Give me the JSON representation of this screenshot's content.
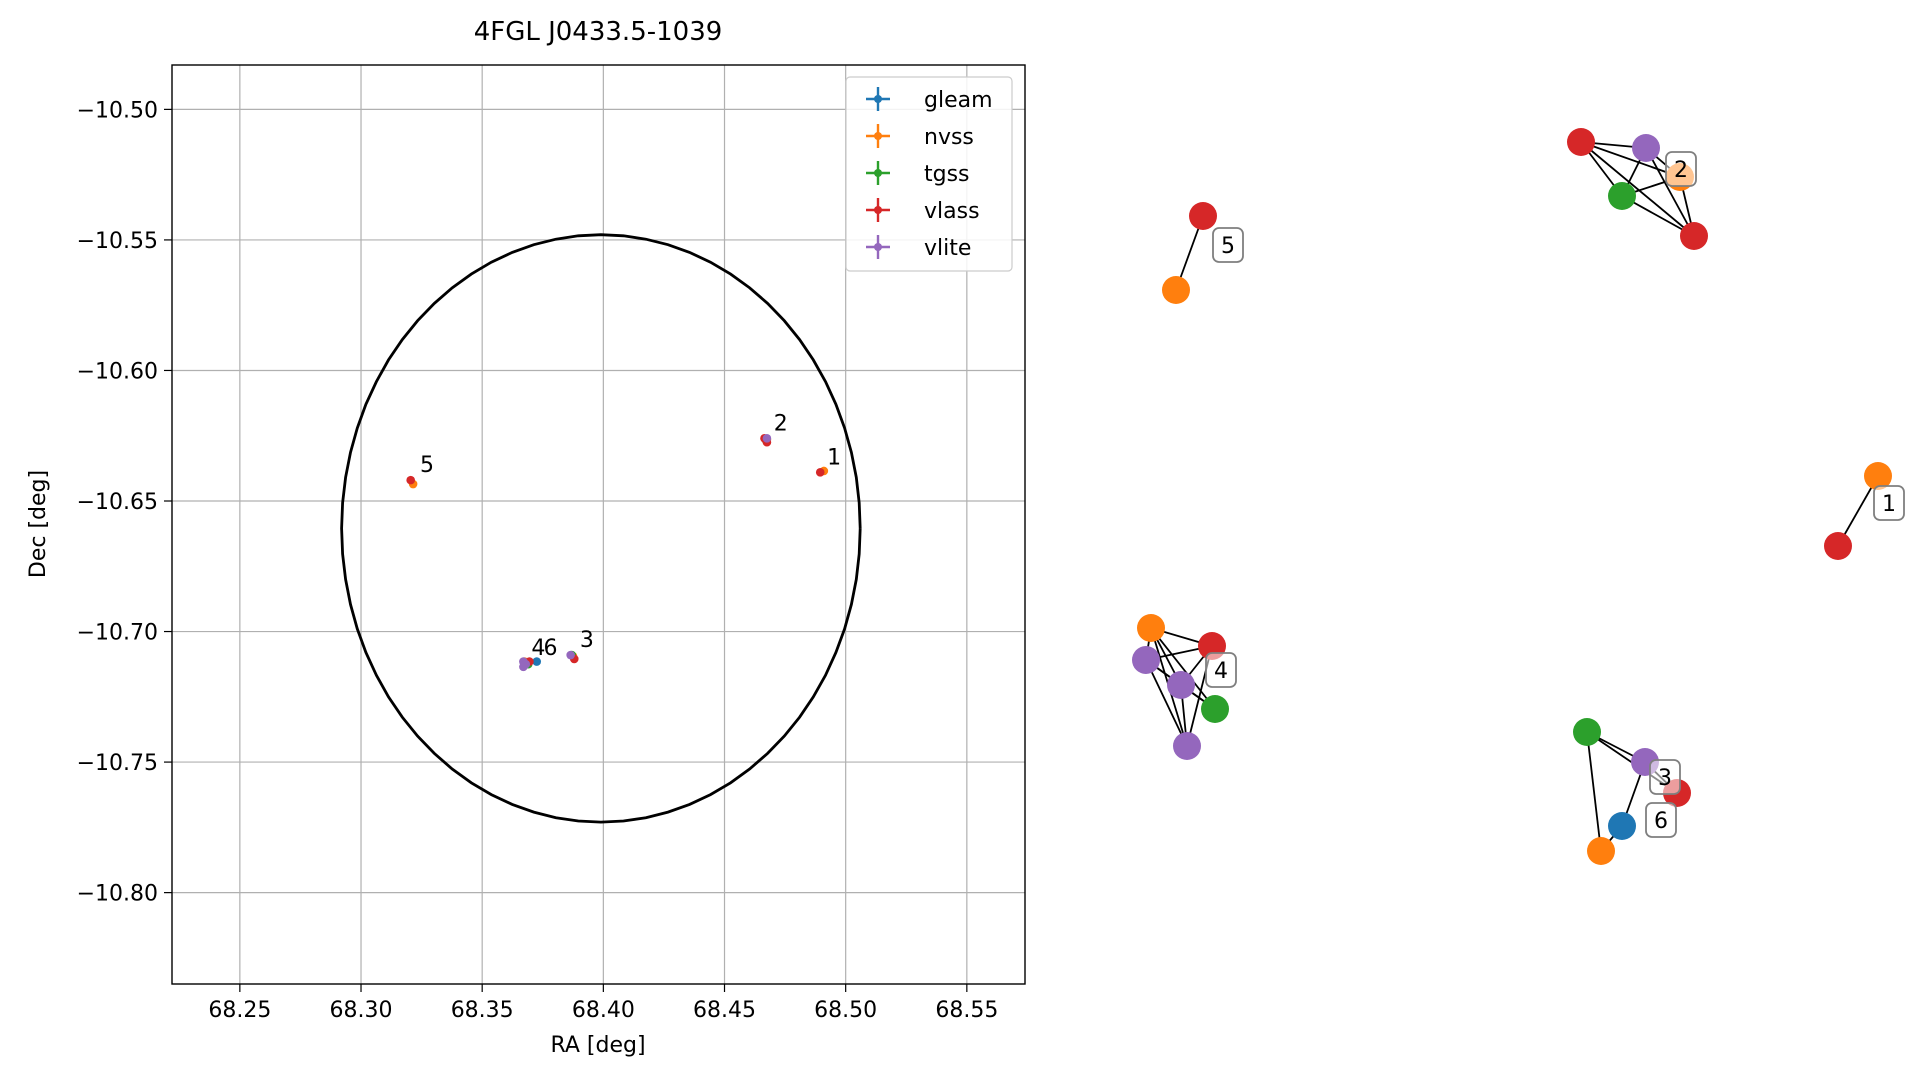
{
  "chart_data": [
    {
      "type": "scatter",
      "title": "4FGL J0433.5-1039",
      "xlabel": "RA [deg]",
      "ylabel": "Dec [deg]",
      "xlim": [
        68.222,
        68.574
      ],
      "ylim": [
        -10.835,
        -10.483
      ],
      "xticks": [
        68.25,
        68.3,
        68.35,
        68.4,
        68.45,
        68.5,
        68.55
      ],
      "xtick_labels": [
        "68.25",
        "68.30",
        "68.35",
        "68.40",
        "68.45",
        "68.50",
        "68.55"
      ],
      "yticks": [
        -10.5,
        -10.55,
        -10.6,
        -10.65,
        -10.7,
        -10.75,
        -10.8
      ],
      "ytick_labels": [
        "−10.50",
        "−10.55",
        "−10.60",
        "−10.65",
        "−10.70",
        "−10.75",
        "−10.80"
      ],
      "grid": true,
      "legend_position": "top-right",
      "series": [
        {
          "name": "gleam",
          "color": "#1f77b4",
          "points": [
            [
              68.3725,
              -10.7115
            ]
          ]
        },
        {
          "name": "nvss",
          "color": "#ff7f0e",
          "points": [
            [
              68.491,
              -10.6385
            ],
            [
              68.4675,
              -10.6265
            ],
            [
              68.3215,
              -10.6435
            ],
            [
              68.3675,
              -10.7115
            ],
            [
              68.3875,
              -10.7095
            ]
          ]
        },
        {
          "name": "tgss",
          "color": "#2ca02c",
          "points": [
            [
              68.467,
              -10.6265
            ],
            [
              68.369,
              -10.7125
            ],
            [
              68.387,
              -10.709
            ]
          ]
        },
        {
          "name": "vlass",
          "color": "#d62728",
          "points": [
            [
              68.4895,
              -10.639
            ],
            [
              68.4665,
              -10.626
            ],
            [
              68.4675,
              -10.6275
            ],
            [
              68.3205,
              -10.642
            ],
            [
              68.3695,
              -10.7115
            ],
            [
              68.388,
              -10.7105
            ]
          ]
        },
        {
          "name": "vlite",
          "color": "#9467bd",
          "points": [
            [
              68.4675,
              -10.626
            ],
            [
              68.367,
              -10.7115
            ],
            [
              68.368,
              -10.7125
            ],
            [
              68.367,
              -10.7135
            ],
            [
              68.3865,
              -10.709
            ]
          ]
        }
      ],
      "labels": [
        {
          "text": "1",
          "ra": 68.4915,
          "dec": -10.6375
        },
        {
          "text": "2",
          "ra": 68.4695,
          "dec": -10.6245
        },
        {
          "text": "5",
          "ra": 68.3235,
          "dec": -10.6405
        },
        {
          "text": "4",
          "ra": 68.3695,
          "dec": -10.7105
        },
        {
          "text": "6",
          "ra": 68.3745,
          "dec": -10.7105
        },
        {
          "text": "3",
          "ra": 68.3895,
          "dec": -10.7075
        }
      ],
      "ellipse": {
        "center_ra": 68.399,
        "center_dec": -10.6605,
        "semi_ra": 0.107,
        "semi_dec": 0.1125,
        "color": "#000000"
      }
    },
    {
      "type": "network",
      "nodes": [
        {
          "id": "g1_nvss",
          "color": "#ff7f0e"
        },
        {
          "id": "g1_vlass",
          "color": "#d62728"
        },
        {
          "id": "g2_vlass_a",
          "color": "#d62728"
        },
        {
          "id": "g2_vlite",
          "color": "#9467bd"
        },
        {
          "id": "g2_nvss",
          "color": "#ff7f0e"
        },
        {
          "id": "g2_tgss",
          "color": "#2ca02c"
        },
        {
          "id": "g2_vlass_b",
          "color": "#d62728"
        },
        {
          "id": "g5_vlass",
          "color": "#d62728"
        },
        {
          "id": "g5_nvss",
          "color": "#ff7f0e"
        },
        {
          "id": "g4_nvss",
          "color": "#ff7f0e"
        },
        {
          "id": "g4_vlass",
          "color": "#d62728"
        },
        {
          "id": "g4_vlite_a",
          "color": "#9467bd"
        },
        {
          "id": "g4_vlite_b",
          "color": "#9467bd"
        },
        {
          "id": "g4_tgss",
          "color": "#2ca02c"
        },
        {
          "id": "g4_vlite_c",
          "color": "#9467bd"
        },
        {
          "id": "g3_tgss",
          "color": "#2ca02c"
        },
        {
          "id": "g3_vlite",
          "color": "#9467bd"
        },
        {
          "id": "g3_vlass",
          "color": "#d62728"
        },
        {
          "id": "g3_gleam",
          "color": "#1f77b4"
        },
        {
          "id": "g3_nvss",
          "color": "#ff7f0e"
        }
      ],
      "edges": [
        [
          "g1_nvss",
          "g1_vlass"
        ],
        [
          "g2_vlass_a",
          "g2_vlite"
        ],
        [
          "g2_vlass_a",
          "g2_tgss"
        ],
        [
          "g2_vlass_a",
          "g2_vlass_b"
        ],
        [
          "g2_vlass_a",
          "g2_nvss"
        ],
        [
          "g2_vlite",
          "g2_nvss"
        ],
        [
          "g2_vlite",
          "g2_tgss"
        ],
        [
          "g2_vlite",
          "g2_vlass_b"
        ],
        [
          "g2_tgss",
          "g2_nvss"
        ],
        [
          "g2_tgss",
          "g2_vlass_b"
        ],
        [
          "g2_nvss",
          "g2_vlass_b"
        ],
        [
          "g5_vlass",
          "g5_nvss"
        ],
        [
          "g4_nvss",
          "g4_vlass"
        ],
        [
          "g4_nvss",
          "g4_vlite_a"
        ],
        [
          "g4_nvss",
          "g4_vlite_b"
        ],
        [
          "g4_nvss",
          "g4_tgss"
        ],
        [
          "g4_nvss",
          "g4_vlite_c"
        ],
        [
          "g4_vlass",
          "g4_vlite_a"
        ],
        [
          "g4_vlass",
          "g4_vlite_b"
        ],
        [
          "g4_vlass",
          "g4_vlite_c"
        ],
        [
          "g4_vlite_a",
          "g4_vlite_b"
        ],
        [
          "g4_vlite_a",
          "g4_tgss"
        ],
        [
          "g4_vlite_a",
          "g4_vlite_c"
        ],
        [
          "g4_vlite_b",
          "g4_tgss"
        ],
        [
          "g4_vlite_b",
          "g4_vlite_c"
        ],
        [
          "g3_tgss",
          "g3_vlite"
        ],
        [
          "g3_tgss",
          "g3_vlass"
        ],
        [
          "g3_tgss",
          "g3_nvss"
        ],
        [
          "g3_vlite",
          "g3_vlass"
        ],
        [
          "g3_vlite",
          "g3_gleam"
        ],
        [
          "g3_gleam",
          "g3_nvss"
        ]
      ],
      "labels": [
        "1",
        "2",
        "5",
        "4",
        "3",
        "6"
      ]
    }
  ]
}
